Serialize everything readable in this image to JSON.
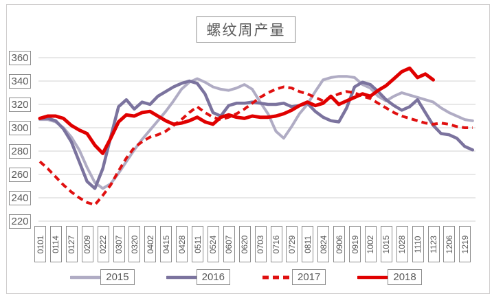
{
  "title": "螺纹周产量",
  "chart_data": {
    "type": "line",
    "title": "螺纹周产量",
    "grid": "horizontal",
    "legend_position": "bottom",
    "y_axis": {
      "min": 220,
      "max": 360,
      "step": 20,
      "ticks": [
        360,
        340,
        320,
        300,
        280,
        260,
        240,
        220
      ]
    },
    "x_axis": {
      "tick_labels": [
        "0101",
        "0114",
        "0127",
        "0209",
        "0222",
        "0307",
        "0320",
        "0402",
        "0415",
        "0428",
        "0511",
        "0524",
        "0607",
        "0620",
        "0703",
        "0716",
        "0729",
        "0811",
        "0824",
        "0906",
        "0919",
        "1002",
        "1015",
        "1028",
        "1110",
        "1123",
        "1206",
        "1219"
      ],
      "points_per_label": 2
    },
    "series": [
      {
        "name": "2015",
        "color": "#b0acc4",
        "style": "solid",
        "width": 4,
        "values": [
          307,
          307,
          305,
          300,
          292,
          281,
          266,
          253,
          248,
          252,
          261,
          271,
          281,
          290,
          298,
          306,
          314,
          323,
          333,
          339,
          342,
          339,
          335,
          333,
          332,
          334,
          337,
          333,
          322,
          312,
          297,
          291,
          301,
          312,
          320,
          331,
          341,
          343,
          344,
          344,
          343,
          337,
          334,
          327,
          323,
          327,
          330,
          328,
          326,
          324,
          322,
          317,
          313,
          310,
          307,
          306
        ]
      },
      {
        "name": "2016",
        "color": "#7b739e",
        "style": "solid",
        "width": 4.5,
        "values": [
          308,
          308,
          306,
          299,
          288,
          271,
          254,
          248,
          265,
          292,
          318,
          324,
          316,
          322,
          320,
          327,
          331,
          335,
          338,
          340,
          338,
          329,
          313,
          310,
          319,
          321,
          321,
          322,
          321,
          320,
          320,
          321,
          318,
          319,
          321,
          314,
          309,
          306,
          305,
          317,
          335,
          339,
          337,
          331,
          324,
          319,
          315,
          318,
          324,
          313,
          302,
          295,
          294,
          291,
          284,
          281
        ]
      },
      {
        "name": "2017",
        "color": "#e01010",
        "style": "dashed",
        "width": 4,
        "values": [
          271,
          265,
          258,
          251,
          245,
          240,
          236,
          234,
          242,
          251,
          263,
          274,
          283,
          288,
          292,
          294,
          297,
          302,
          307,
          313,
          318,
          313,
          309,
          307,
          309,
          312,
          316,
          321,
          326,
          330,
          333,
          335,
          334,
          331,
          329,
          326,
          323,
          326,
          329,
          331,
          330,
          327,
          325,
          321,
          317,
          313,
          310,
          308,
          306,
          304,
          303,
          304,
          303,
          301,
          300,
          300
        ]
      },
      {
        "name": "2018",
        "color": "#e00000",
        "style": "solid",
        "width": 5,
        "values": [
          308,
          310,
          310,
          308,
          302,
          298,
          295,
          285,
          278,
          291,
          305,
          311,
          310,
          313,
          314,
          310,
          306,
          303,
          304,
          306,
          309,
          305,
          303,
          309,
          311,
          309,
          308,
          310,
          309,
          309,
          310,
          312,
          315,
          319,
          322,
          319,
          321,
          327,
          320,
          323,
          326,
          329,
          327,
          332,
          336,
          342,
          348,
          351,
          343,
          346,
          341
        ]
      }
    ]
  }
}
